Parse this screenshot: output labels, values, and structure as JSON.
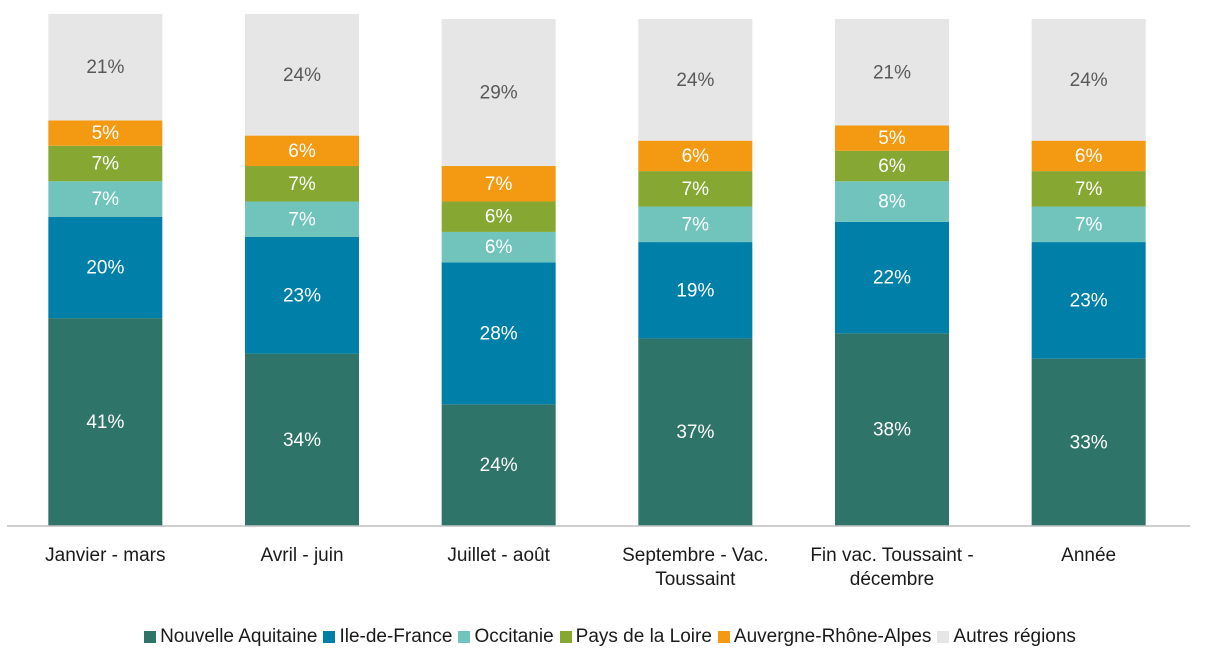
{
  "chart_data": {
    "type": "stacked_bar",
    "categories": [
      "Janvier - mars",
      "Avril - juin",
      "Juillet - août",
      "Septembre - Vac. Toussaint",
      "Fin vac. Toussaint - décembre",
      "Année"
    ],
    "ylim": [
      0,
      100
    ],
    "series": [
      {
        "name": "Nouvelle Aquitaine",
        "color": "#2e7469",
        "label_color": "#ffffff",
        "values": [
          41,
          34,
          24,
          37,
          38,
          33
        ],
        "value_labels": [
          "41%",
          "34%",
          "24%",
          "37%",
          "38%",
          "33%"
        ]
      },
      {
        "name": "Ile-de-France",
        "color": "#0080a8",
        "label_color": "#ffffff",
        "values": [
          20,
          23,
          28,
          19,
          22,
          23
        ],
        "value_labels": [
          "20%",
          "23%",
          "28%",
          "19%",
          "22%",
          "23%"
        ]
      },
      {
        "name": "Occitanie",
        "color": "#70c4bc",
        "label_color": "#ffffff",
        "values": [
          7,
          7,
          6,
          7,
          8,
          7
        ],
        "value_labels": [
          "7%",
          "7%",
          "6%",
          "7%",
          "8%",
          "7%"
        ]
      },
      {
        "name": "Pays de la Loire",
        "color": "#86a832",
        "label_color": "#ffffff",
        "values": [
          7,
          7,
          6,
          7,
          6,
          7
        ],
        "value_labels": [
          "7%",
          "7%",
          "6%",
          "7%",
          "6%",
          "7%"
        ]
      },
      {
        "name": "Auvergne-Rhône-Alpes",
        "color": "#f39a12",
        "label_color": "#ffffff",
        "values": [
          5,
          6,
          7,
          6,
          5,
          6
        ],
        "value_labels": [
          "5%",
          "6%",
          "7%",
          "6%",
          "5%",
          "6%"
        ]
      },
      {
        "name": "Autres régions",
        "color": "#e6e6e6",
        "label_color": "#595959",
        "values": [
          21,
          24,
          29,
          24,
          21,
          24
        ],
        "value_labels": [
          "21%",
          "24%",
          "29%",
          "24%",
          "21%",
          "24%"
        ]
      }
    ]
  }
}
